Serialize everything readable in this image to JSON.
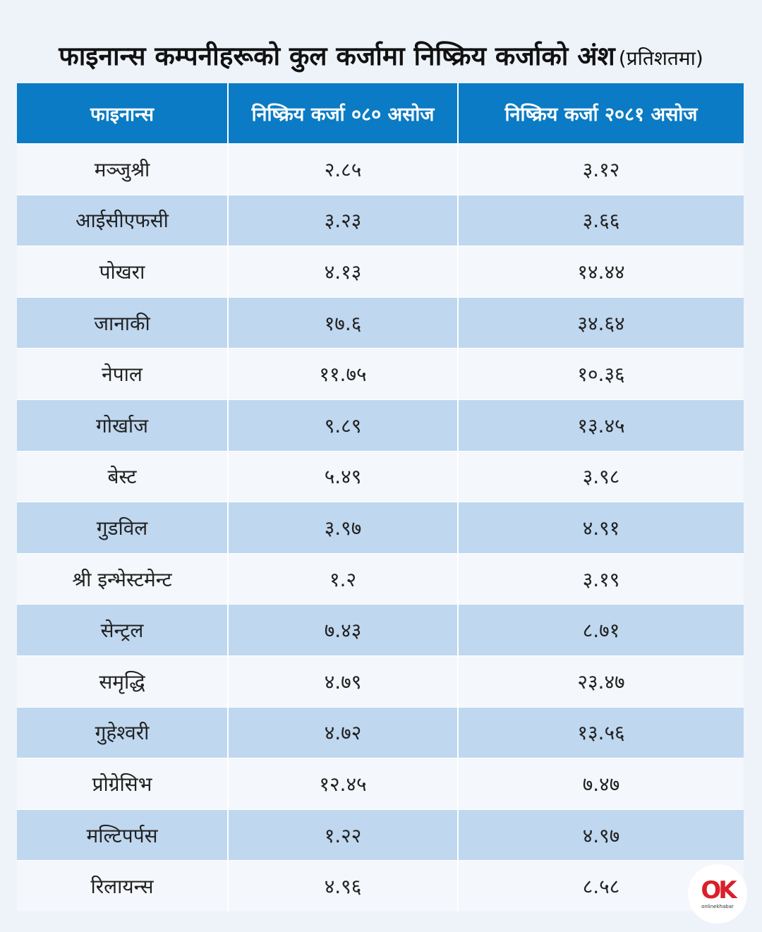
{
  "title": {
    "main": "फाइनान्स कम्पनीहरूको कुल कर्जामा निष्क्रिय कर्जाको अंश",
    "sub": "(प्रतिशतमा)"
  },
  "colors": {
    "header_bg": "#0a7bc4",
    "row_alt": "#bfd7ef",
    "row_base": "#f4f7fb"
  },
  "logo": {
    "mark": "OK",
    "word": "onlinekhabar"
  },
  "chart_data": {
    "type": "table",
    "title": "फाइनान्स कम्पनीहरूको कुल कर्जामा निष्क्रिय कर्जाको अंश",
    "subtitle": "(प्रतिशतमा)",
    "columns": [
      "फाइनान्स",
      "निष्क्रिय कर्जा ०८० असोज",
      "निष्क्रिय कर्जा २०८१ असोज"
    ],
    "rows": [
      [
        "मञ्जुश्री",
        "२.८५",
        "३.१२"
      ],
      [
        "आईसीएफसी",
        "३.२३",
        "३.६६"
      ],
      [
        "पोखरा",
        "४.१३",
        "१४.४४"
      ],
      [
        "जानाकी",
        "१७.६",
        "३४.६४"
      ],
      [
        "नेपाल",
        "११.७५",
        "१०.३६"
      ],
      [
        "गोर्खाज",
        "९.८९",
        "१३.४५"
      ],
      [
        "बेस्ट",
        "५.४९",
        "३.९८"
      ],
      [
        "गुडविल",
        "३.९७",
        "४.९१"
      ],
      [
        "श्री इन्भेस्टमेन्ट",
        "१.२",
        "३.१९"
      ],
      [
        "सेन्ट्रल",
        "७.४३",
        "८.७१"
      ],
      [
        "समृद्धि",
        "४.७९",
        "२३.४७"
      ],
      [
        "गुहेश्वरी",
        "४.७२",
        "१३.५६"
      ],
      [
        "प्रोग्रेसिभ",
        "१२.४५",
        "७.४७"
      ],
      [
        "मल्टिपर्पस",
        "१.२२",
        "४.९७"
      ],
      [
        "रिलायन्स",
        "४.९६",
        "८.५८"
      ]
    ]
  }
}
